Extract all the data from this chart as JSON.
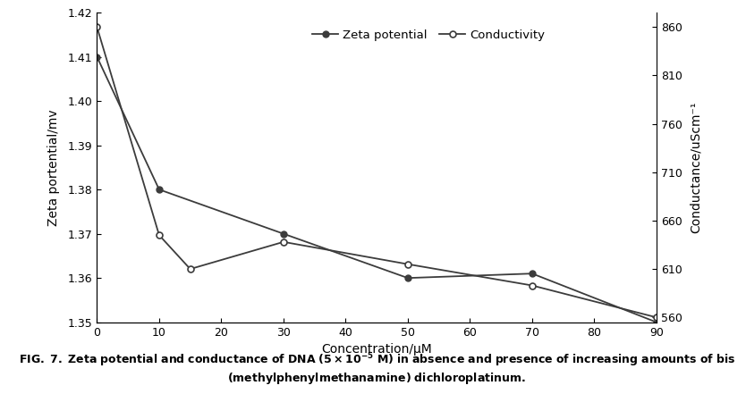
{
  "x_zeta": [
    0,
    10,
    30,
    50,
    70,
    90
  ],
  "zeta_potential": [
    1.41,
    1.38,
    1.37,
    1.36,
    1.361,
    1.35
  ],
  "x_cond": [
    0,
    10,
    15,
    30,
    50,
    70,
    90
  ],
  "conductance_y": [
    860,
    645,
    610,
    638,
    615,
    593,
    560
  ],
  "ylim_left": [
    1.35,
    1.42
  ],
  "ylim_right": [
    555,
    875
  ],
  "xlim": [
    0,
    90
  ],
  "xlabel": "Concentration/μM",
  "ylabel_left": "Zeta portential/mv",
  "ylabel_right": "Conductance/uScm⁻¹",
  "legend_zeta": "Zeta potential",
  "legend_conductivity": "Conductivity",
  "caption_bold": "FIG. 7.",
  "caption_normal": " Zeta potential and conductance of DNA (5 × 10",
  "caption_superscript": "-5",
  "caption_normal2": " M) in absence and presence of increasing amounts of bis\n(methylphenylmethanamine) dichloroplatinum.",
  "yticks_left": [
    1.35,
    1.36,
    1.37,
    1.38,
    1.39,
    1.4,
    1.41,
    1.42
  ],
  "yticks_right": [
    560,
    610,
    660,
    710,
    760,
    810,
    860
  ],
  "xticks": [
    0,
    10,
    20,
    30,
    40,
    50,
    60,
    70,
    80,
    90
  ],
  "line_color": "#3c3c3c",
  "bg_color": "#ffffff"
}
